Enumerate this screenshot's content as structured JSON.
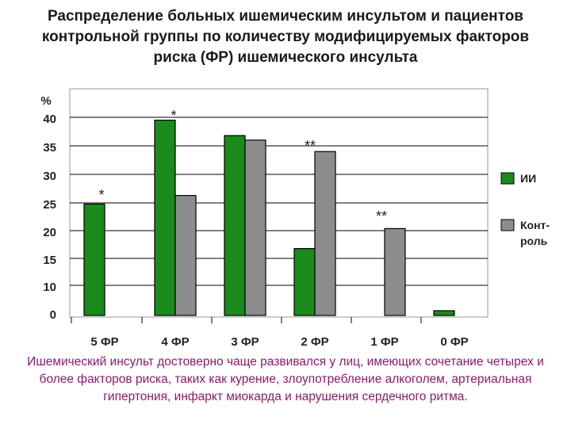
{
  "chart_data": {
    "type": "bar",
    "title": "Распределение больных ишемическим инсультом и пациентов контрольной группы по количеству модифицируемых факторов риска  (ФР) ишемического инсульта",
    "ylabel": "%",
    "y_ticks": [
      "40",
      "35",
      "30",
      "25",
      "20",
      "15",
      "10",
      "0"
    ],
    "categories": [
      "5 ФР",
      "4 ФР",
      "3 ФР",
      "2 ФР",
      "1 ФР",
      "0 ФР"
    ],
    "series": [
      {
        "name": "ИИ",
        "color": "#1a8a1a",
        "values": [
          24.8,
          39.5,
          36.8,
          17.0,
          3.0,
          0.0
        ]
      },
      {
        "name": "Конт-роль",
        "color": "#8c8c8c",
        "values": [
          4.0,
          26.3,
          36.0,
          34.0,
          20.5,
          1.0
        ]
      }
    ],
    "annotations": [
      {
        "text": "*",
        "category": "5 ФР"
      },
      {
        "text": "*",
        "category": "4 ФР"
      },
      {
        "text": "**",
        "category": "2 ФР"
      },
      {
        "text": "**",
        "category": "1 ФР"
      }
    ],
    "legend_position": "right",
    "grid": "horizontal"
  },
  "caption": "Ишемический инсульт достоверно чаще развивался у лиц, имеющих сочетание четырех и более факторов риска, таких как курение, злоупотребление алкоголем, артериальная гипертония, инфаркт миокарда и нарушения сердечного ритма."
}
